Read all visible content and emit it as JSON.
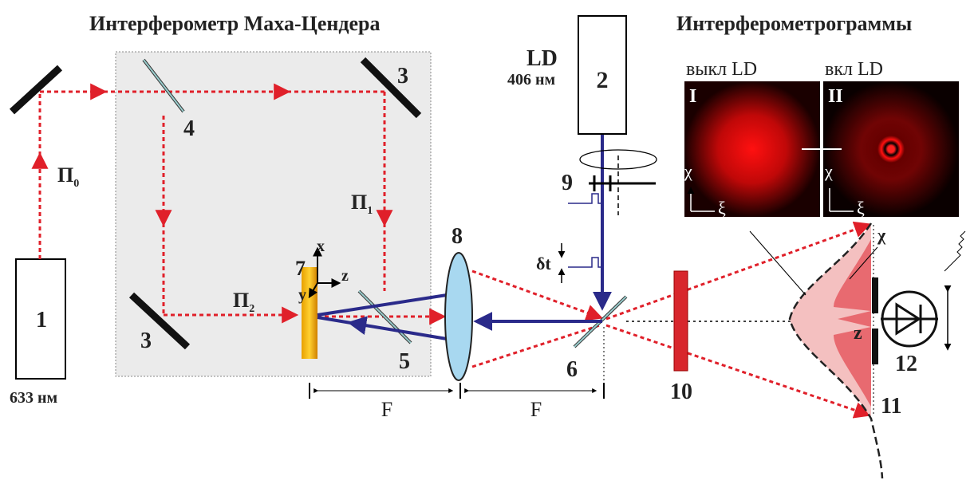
{
  "titles": {
    "left": "Интерферометр Маха-Цендера",
    "right": "Интерферометрограммы"
  },
  "laser": {
    "number": "1",
    "wavelength": "633 нм"
  },
  "source": {
    "number": "2",
    "label": "LD",
    "wavelength": "406 нм"
  },
  "panels": [
    {
      "state": "выкл LD",
      "roman": "I",
      "axis_y": "χ",
      "axis_x": "ξ"
    },
    {
      "state": "вкл LD",
      "roman": "II",
      "axis_y": "χ",
      "axis_x": "ξ"
    }
  ],
  "elements": {
    "mirror_top": "3",
    "mirror_bottom": "3",
    "splitter_in": "4",
    "splitter_out": "5",
    "splitter_main": "6",
    "sample": "7",
    "lens": "8",
    "chopper": "9",
    "filter": "10",
    "profile": "11",
    "detector": "12"
  },
  "beams": [
    {
      "name": "П",
      "sub": "0"
    },
    {
      "name": "П",
      "sub": "1"
    },
    {
      "name": "П",
      "sub": "2"
    }
  ],
  "sample_axes": {
    "x": "x",
    "y": "y",
    "z": "z"
  },
  "focal": [
    "F",
    "F"
  ],
  "pulse": "δt",
  "profile_axes": {
    "z": "z",
    "chi": "χ"
  }
}
